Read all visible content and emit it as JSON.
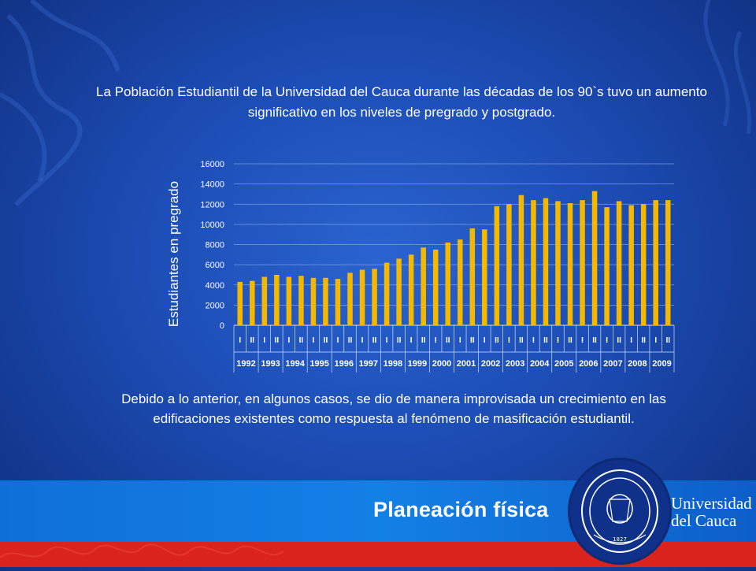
{
  "intro_text": "La Población Estudiantil de la Universidad del Cauca durante las décadas de los 90`s tuvo un aumento significativo en los niveles de pregrado y postgrado.",
  "conclusion_text": "Debido a lo anterior, en algunos casos, se dio de manera improvisada un crecimiento en las edificaciones existentes como respuesta al fenómeno de masificación estudiantil.",
  "footer": {
    "title": "Planeación física",
    "university_name_line1": "Universidad",
    "university_name_line2": "del Cauca",
    "seal_year": "1827"
  },
  "colors": {
    "bar": "#f5b800",
    "footer_blue": "#1380e6",
    "footer_red": "#d9231c",
    "background": "#1c4cb4"
  },
  "chart_data": {
    "type": "bar",
    "ylabel": "Estudiantes en pregrado",
    "ylim": [
      0,
      16000
    ],
    "yticks": [
      0,
      2000,
      4000,
      6000,
      8000,
      10000,
      12000,
      14000,
      16000
    ],
    "grid": true,
    "years": [
      "1992",
      "1993",
      "1994",
      "1995",
      "1996",
      "1997",
      "1998",
      "1999",
      "2000",
      "2001",
      "2002",
      "2003",
      "2004",
      "2005",
      "2006",
      "2007",
      "2008",
      "2009"
    ],
    "periods": [
      "I",
      "II"
    ],
    "categories": [
      "1992-I",
      "1992-II",
      "1993-I",
      "1993-II",
      "1994-I",
      "1994-II",
      "1995-I",
      "1995-II",
      "1996-I",
      "1996-II",
      "1997-I",
      "1997-II",
      "1998-I",
      "1998-II",
      "1999-I",
      "1999-II",
      "2000-I",
      "2000-II",
      "2001-I",
      "2001-II",
      "2002-I",
      "2002-II",
      "2003-I",
      "2003-II",
      "2004-I",
      "2004-II",
      "2005-I",
      "2005-II",
      "2006-I",
      "2006-II",
      "2007-I",
      "2007-II",
      "2008-I",
      "2008-II",
      "2009-I",
      "2009-II"
    ],
    "values": [
      4300,
      4400,
      4800,
      5000,
      4800,
      4900,
      4700,
      4700,
      4600,
      5200,
      5500,
      5600,
      6200,
      6600,
      7000,
      7700,
      7500,
      8200,
      8500,
      9600,
      9500,
      11800,
      12000,
      12900,
      12400,
      12600,
      12300,
      12100,
      12400,
      13300,
      11700,
      12300,
      11900,
      12000,
      12400,
      12400
    ]
  }
}
